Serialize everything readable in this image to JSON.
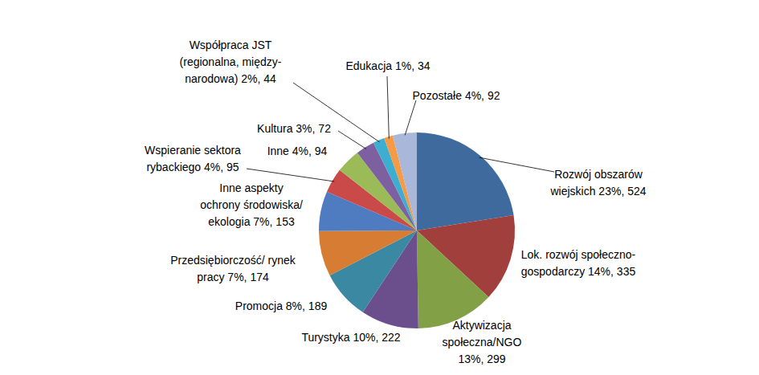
{
  "chart_data": {
    "type": "pie",
    "categories": [
      "Rozwój obszarów wiejskich",
      "Lok. rozwój społeczno-gospodarczy",
      "Aktywizacja społeczna/NGO",
      "Turystyka",
      "Promocja",
      "Przedsiębiorczość/ rynek pracy",
      "Inne aspekty ochrony środowiska/ ekologia",
      "Wspieranie sektora rybackiego",
      "Inne",
      "Kultura",
      "Współpraca JST (regionalna, między-narodowa)",
      "Edukacja",
      "Pozostałe"
    ],
    "values": [
      524,
      335,
      299,
      222,
      189,
      174,
      153,
      95,
      94,
      72,
      44,
      34,
      92
    ],
    "value_labels": [
      "23%, 524",
      "14%, 335",
      "13%, 299",
      "10%, 222",
      "8%, 189",
      "7%, 174",
      "7%, 153",
      "4%, 95",
      "4%, 94",
      "3%, 72",
      "2%, 44",
      "1%, 34",
      "4%, 92"
    ],
    "colors": [
      "#3f6a9e",
      "#a13f3c",
      "#82a046",
      "#6a4f8c",
      "#3a88a2",
      "#d77c33",
      "#4f7cc0",
      "#c94a48",
      "#9bbb59",
      "#7d60a0",
      "#3eaed0",
      "#f59a45",
      "#a9b8da"
    ],
    "data_labels": true
  }
}
